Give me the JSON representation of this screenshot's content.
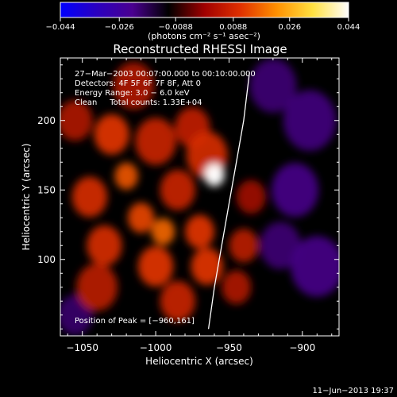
{
  "chart_data": {
    "type": "heatmap",
    "title": "Reconstructed RHESSI Image",
    "xlabel": "Heliocentric X (arcsec)",
    "ylabel": "Heliocentric Y (arcsec)",
    "xlim": [
      -1065,
      -875
    ],
    "ylim": [
      45,
      245
    ],
    "xticks": [
      -1050,
      -1000,
      -950,
      -900
    ],
    "yticks": [
      100,
      150,
      200
    ],
    "xtick_labels": [
      "−1050",
      "−1000",
      "−950",
      "−900"
    ],
    "ytick_labels": [
      "100",
      "150",
      "200"
    ],
    "colorbar": {
      "range": [
        -0.044,
        0.044
      ],
      "ticks": [
        -0.044,
        -0.026,
        -0.0088,
        0.0088,
        0.026,
        0.044
      ],
      "tick_labels": [
        "−0.044",
        "−0.026",
        "−0.0088",
        "0.0088",
        "0.026",
        "0.044"
      ],
      "unit_label": "(photons cm⁻² s⁻¹ asec⁻²)",
      "colors": [
        "#0000ff",
        "#2a00c0",
        "#4a0090",
        "#000000",
        "#a00000",
        "#e03000",
        "#ff9000",
        "#ffe040",
        "#ffffff"
      ]
    },
    "info_lines": [
      "27−Mar−2003 00:07:00.000 to 00:10:00.000",
      "Detectors: 4F 5F 6F 7F 8F, Att 0",
      "Energy Range: 3.0 − 6.0 keV",
      "Clean     Total counts: 1.33E+04"
    ],
    "peak_label": "Position of Peak = [−960,161]",
    "peak": {
      "x": -960,
      "y": 161,
      "value": 0.044
    },
    "limb_curve": {
      "x": [
        -964,
        -960,
        -955,
        -950,
        -945,
        -940,
        -936
      ],
      "y": [
        50,
        80,
        110,
        140,
        170,
        200,
        235
      ]
    },
    "sources": [
      {
        "x": -960,
        "y": 161,
        "value": 0.044,
        "r": 7
      },
      {
        "x": -965,
        "y": 175,
        "value": 0.018,
        "r": 14
      },
      {
        "x": -1030,
        "y": 190,
        "value": 0.02,
        "r": 12
      },
      {
        "x": -1000,
        "y": 185,
        "value": 0.016,
        "r": 14
      },
      {
        "x": -975,
        "y": 195,
        "value": 0.015,
        "r": 12
      },
      {
        "x": -1020,
        "y": 160,
        "value": 0.024,
        "r": 8
      },
      {
        "x": -1045,
        "y": 145,
        "value": 0.018,
        "r": 12
      },
      {
        "x": -1010,
        "y": 130,
        "value": 0.022,
        "r": 9
      },
      {
        "x": -985,
        "y": 150,
        "value": 0.016,
        "r": 12
      },
      {
        "x": -995,
        "y": 120,
        "value": 0.026,
        "r": 8
      },
      {
        "x": -1035,
        "y": 110,
        "value": 0.018,
        "r": 12
      },
      {
        "x": -970,
        "y": 120,
        "value": 0.02,
        "r": 10
      },
      {
        "x": -1000,
        "y": 95,
        "value": 0.02,
        "r": 12
      },
      {
        "x": -965,
        "y": 95,
        "value": 0.02,
        "r": 11
      },
      {
        "x": -1040,
        "y": 80,
        "value": 0.014,
        "r": 14
      },
      {
        "x": -985,
        "y": 70,
        "value": 0.016,
        "r": 12
      },
      {
        "x": -940,
        "y": 110,
        "value": 0.014,
        "r": 10
      },
      {
        "x": -945,
        "y": 80,
        "value": 0.012,
        "r": 10
      },
      {
        "x": -935,
        "y": 145,
        "value": 0.01,
        "r": 10
      },
      {
        "x": -1055,
        "y": 200,
        "value": 0.012,
        "r": 12
      },
      {
        "x": -1015,
        "y": 225,
        "value": 0.012,
        "r": 14
      },
      {
        "x": -905,
        "y": 150,
        "value": -0.014,
        "r": 16
      },
      {
        "x": -895,
        "y": 200,
        "value": -0.012,
        "r": 18
      },
      {
        "x": -890,
        "y": 95,
        "value": -0.014,
        "r": 18
      },
      {
        "x": -920,
        "y": 225,
        "value": -0.01,
        "r": 16
      },
      {
        "x": -915,
        "y": 110,
        "value": -0.01,
        "r": 14
      },
      {
        "x": -1055,
        "y": 60,
        "value": -0.008,
        "r": 12
      }
    ]
  },
  "timestamp": "11−Jun−2013 19:37"
}
